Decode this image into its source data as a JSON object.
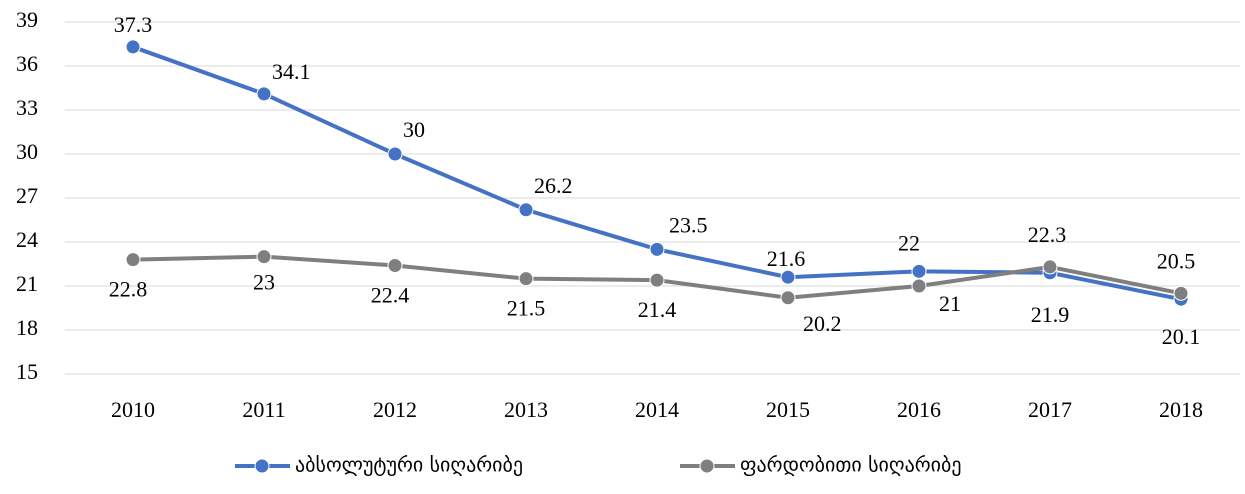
{
  "chart_data": {
    "type": "line",
    "x": [
      2010,
      2011,
      2012,
      2013,
      2014,
      2015,
      2016,
      2017,
      2018
    ],
    "series": [
      {
        "name": "აბსოლუტური სიღარიბე",
        "color": "#4472c4",
        "values": [
          37.3,
          34.1,
          30,
          26.2,
          23.5,
          21.6,
          22,
          21.9,
          20.1
        ]
      },
      {
        "name": "ფარდობითი სიღარიბე",
        "color": "#7f7f7f",
        "values": [
          22.8,
          23,
          22.4,
          21.5,
          21.4,
          20.2,
          21,
          22.3,
          20.5
        ]
      }
    ],
    "ylim": [
      15,
      39
    ],
    "yticks": [
      15,
      18,
      21,
      24,
      27,
      30,
      33,
      36,
      39
    ],
    "grid": true,
    "legend": "bottom"
  }
}
